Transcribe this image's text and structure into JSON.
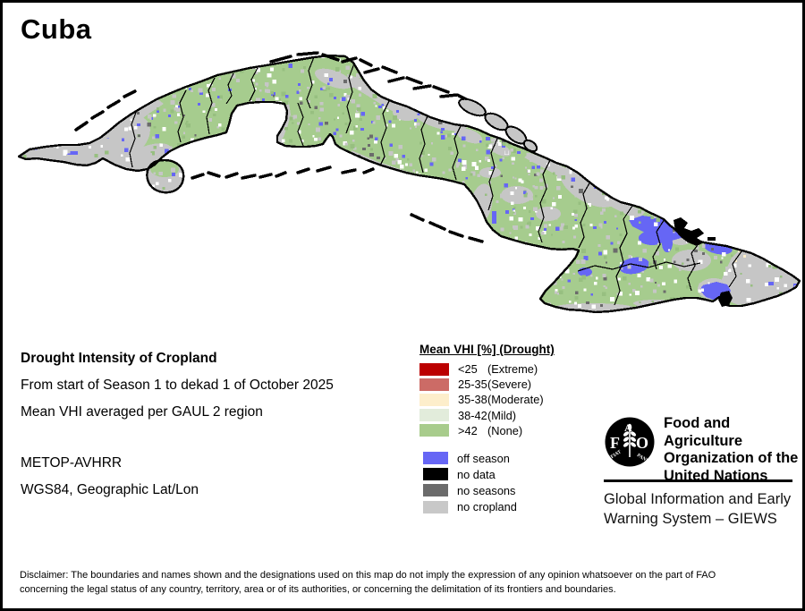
{
  "title": "Cuba",
  "info": {
    "heading": "Drought Intensity of Cropland",
    "period": "From start of Season 1 to dekad 1 of October 2025",
    "method": "Mean VHI averaged per GAUL 2 region",
    "sensor": "METOP-AVHRR",
    "projection": "WGS84, Geographic Lat/Lon"
  },
  "legend": {
    "title": "Mean VHI [%] (Drought)",
    "classes": [
      {
        "value": "<25",
        "label": "(Extreme)",
        "color": "#bb0000"
      },
      {
        "value": "25-35",
        "label": "(Severe)",
        "color": "#cc6b66"
      },
      {
        "value": "35-38",
        "label": "(Moderate)",
        "color": "#fdeecb"
      },
      {
        "value": "38-42",
        "label": "(Mild)",
        "color": "#e2ecdb"
      },
      {
        "value": ">42",
        "label": "(None)",
        "color": "#a8cc8c"
      }
    ],
    "extras": [
      {
        "label": "off season",
        "color": "#6666f5"
      },
      {
        "label": "no data",
        "color": "#000000"
      },
      {
        "label": "no seasons",
        "color": "#6b6b6b"
      },
      {
        "label": "no cropland",
        "color": "#c8c8c8"
      }
    ]
  },
  "org": {
    "logo_letters": [
      "F",
      "A",
      "O"
    ],
    "motto_left": "FIAT",
    "motto_right": "PANIS",
    "name_line1": "Food and Agriculture",
    "name_line2": "Organization of the",
    "name_line3": "United Nations",
    "sub_line1": "Global Information and Early",
    "sub_line2": "Warning System – GIEWS"
  },
  "disclaimer": {
    "line1": "Disclaimer: The boundaries and names shown and the designations used on this map do not imply the expression of any opinion whatsoever on the part of FAO",
    "line2": "concerning the legal status of any country, territory, area or of its authorities, or concerning the delimitation of its frontiers and boundaries."
  },
  "map": {
    "region_label": "Cuba",
    "palette": {
      "crop_none": "#a6cc8e",
      "crop_dark": "#97bf80",
      "no_cropland": "#c6c6c6",
      "off_season": "#6666f5",
      "no_seasons": "#6b6b6b",
      "moderate": "#fdeecb",
      "no_data": "#000000",
      "sea": "#ffffff"
    }
  }
}
